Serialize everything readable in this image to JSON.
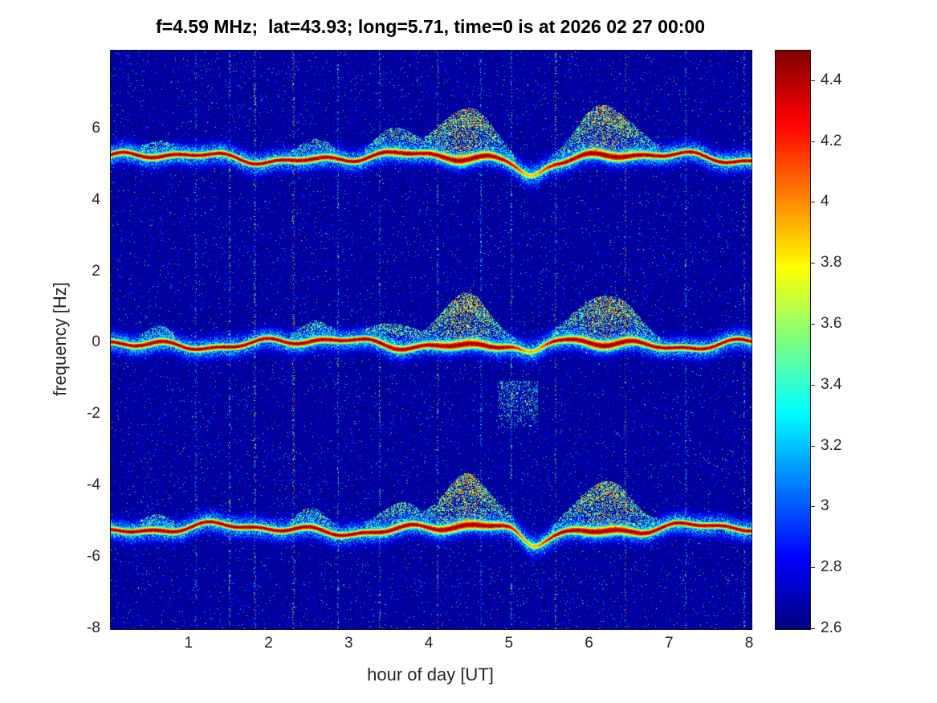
{
  "chart_data": {
    "type": "heatmap",
    "title": "f=4.59 MHz;  lat=43.93; long=5.71, time=0 is at 2026 02 27 00:00",
    "xlabel": "hour of day [UT]",
    "ylabel": "frequency [Hz]",
    "x_range": [
      0.02,
      8.02
    ],
    "y_range": [
      -8,
      8.2
    ],
    "xticks": [
      1,
      2,
      3,
      4,
      5,
      6,
      7,
      8
    ],
    "yticks": [
      6,
      4,
      2,
      0,
      -2,
      -4,
      -6,
      -8
    ],
    "colorbar": {
      "min": 2.6,
      "max": 4.5,
      "ticks": [
        4.4,
        4.2,
        4,
        3.8,
        3.6,
        3.4,
        3.2,
        3,
        2.8,
        2.6
      ],
      "colormap": "jet"
    },
    "noise_floor": 2.6,
    "carriers": [
      {
        "center_hz": 5.2,
        "label": "upper doppler trace"
      },
      {
        "center_hz": 0.0,
        "label": "carrier doppler trace"
      },
      {
        "center_hz": -5.2,
        "label": "lower doppler trace"
      }
    ],
    "blooms": [
      {
        "time_ut": 0.6,
        "peak_offset_hz": 0.3,
        "width_h": 0.18
      },
      {
        "time_ut": 2.55,
        "peak_offset_hz": 0.4,
        "width_h": 0.2
      },
      {
        "time_ut": 3.6,
        "peak_offset_hz": 0.55,
        "width_h": 0.25
      },
      {
        "time_ut": 4.45,
        "peak_offset_hz": 1.3,
        "width_h": 0.3
      },
      {
        "time_ut": 6.2,
        "peak_offset_hz": 1.25,
        "width_h": 0.33
      }
    ],
    "dip": {
      "time_ut": 5.27,
      "depth_hz": 0.4,
      "width_h": 0.14
    },
    "interference_columns_ut": [
      1.08,
      1.5,
      1.82,
      2.3,
      2.86,
      3.38,
      4.1,
      4.64,
      5.02,
      5.57,
      6.45,
      7.2,
      7.93
    ],
    "detached_patch": {
      "t0": 4.85,
      "t1": 5.35,
      "f0": -2.4,
      "f1": -1.05
    }
  }
}
